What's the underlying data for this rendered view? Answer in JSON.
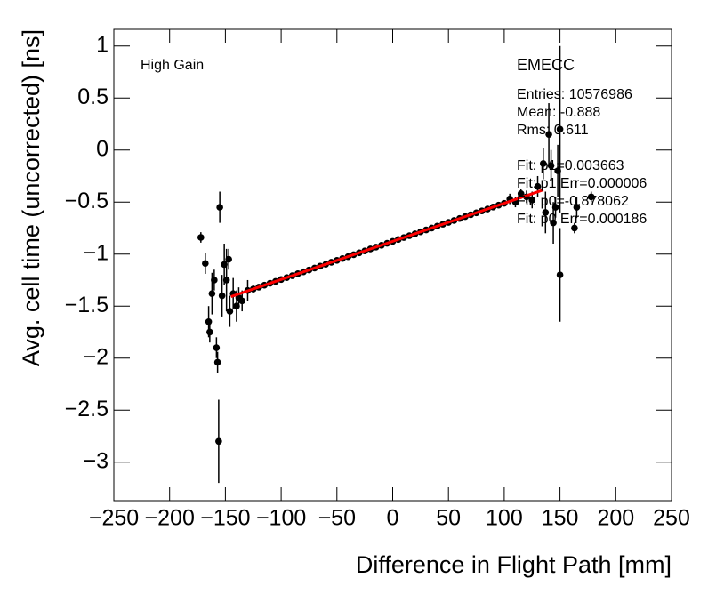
{
  "chart_data": {
    "type": "scatter",
    "xlabel": "Difference in Flight Path [mm]",
    "ylabel": "Avg. cell time (uncorrected) [ns]",
    "annotations": [
      "High Gain"
    ],
    "stats": [
      "EMECC",
      "Entries: 10576986",
      "Mean: -0.888",
      "Rms: 0.611",
      "Fit: p1=0.003663",
      "Fit: p1 Err=0.000006",
      "Fit: p0=-0.878062",
      "Fit: p0 Err=0.000186"
    ],
    "xlim": [
      -250,
      250
    ],
    "ylim": [
      -3.37,
      1.16
    ],
    "xticks": [
      {
        "value": -250,
        "label": "−250"
      },
      {
        "value": -200,
        "label": "−200"
      },
      {
        "value": -150,
        "label": "−150"
      },
      {
        "value": -100,
        "label": "−100"
      },
      {
        "value": -50,
        "label": "−50"
      },
      0,
      50,
      100,
      150,
      200,
      250
    ],
    "yticks": [
      1,
      0.5,
      0,
      {
        "value": -0.5,
        "label": "−0.5"
      },
      {
        "value": -1,
        "label": "−1"
      },
      {
        "value": -1.5,
        "label": "−1.5"
      },
      {
        "value": -2,
        "label": "−2"
      },
      {
        "value": -2.5,
        "label": "−2.5"
      },
      {
        "value": -3,
        "label": "−3"
      }
    ],
    "series": [
      {
        "color": "#000000",
        "x": [
          -172,
          -168,
          -165,
          -164,
          -162,
          -160,
          -158,
          -157,
          -156,
          -155,
          -153,
          -151,
          -149,
          -147,
          -146,
          -143,
          -140,
          -138,
          -135,
          -130,
          -125,
          -120,
          -115,
          -110,
          -105,
          -100,
          -95,
          -90,
          -85,
          -80,
          -75,
          -70,
          -65,
          -60,
          -55,
          -50,
          -45,
          -40,
          -35,
          -30,
          -25,
          -20,
          -15,
          -10,
          -5,
          0,
          5,
          10,
          15,
          20,
          25,
          30,
          35,
          40,
          45,
          50,
          55,
          60,
          65,
          70,
          75,
          80,
          85,
          90,
          95,
          100,
          105,
          110,
          115,
          120,
          125,
          130,
          135,
          137,
          140,
          142,
          144,
          146,
          148,
          150,
          150,
          163,
          165,
          178
        ],
        "values": [
          -0.84,
          -1.09,
          -1.65,
          -1.75,
          -1.38,
          -1.25,
          -1.9,
          -2.04,
          -2.8,
          -0.55,
          -1.4,
          -1.1,
          -1.25,
          -1.05,
          -1.55,
          -1.38,
          -1.5,
          -1.42,
          -1.45,
          -1.35,
          -1.336,
          -1.318,
          -1.299,
          -1.281,
          -1.263,
          -1.244,
          -1.226,
          -1.208,
          -1.189,
          -1.171,
          -1.153,
          -1.134,
          -1.116,
          -1.098,
          -1.079,
          -1.061,
          -1.043,
          -1.025,
          -1.006,
          -0.988,
          -0.97,
          -0.951,
          -0.933,
          -0.915,
          -0.896,
          -0.878,
          -0.86,
          -0.841,
          -0.823,
          -0.805,
          -0.786,
          -0.768,
          -0.75,
          -0.731,
          -0.713,
          -0.695,
          -0.677,
          -0.658,
          -0.64,
          -0.622,
          -0.603,
          -0.585,
          -0.567,
          -0.548,
          -0.53,
          -0.512,
          -0.47,
          -0.5,
          -0.42,
          -0.45,
          -0.48,
          -0.35,
          -0.13,
          -0.6,
          0.15,
          -0.15,
          -0.7,
          -0.55,
          -0.2,
          -1.2,
          0.2,
          -0.75,
          -0.55,
          -0.45
        ],
        "errors": [
          0.05,
          0.1,
          0.15,
          0.1,
          0.2,
          0.1,
          0.1,
          0.1,
          0.4,
          0.15,
          0.2,
          0.2,
          0.3,
          0.1,
          0.15,
          0.15,
          0.15,
          0.1,
          0.1,
          0.1,
          0.04,
          0.03,
          0.03,
          0.03,
          0.02,
          0.02,
          0.02,
          0.02,
          0.02,
          0.02,
          0.02,
          0.02,
          0.02,
          0.02,
          0.02,
          0.02,
          0.02,
          0.02,
          0.02,
          0.02,
          0.02,
          0.02,
          0.02,
          0.02,
          0.02,
          0.02,
          0.02,
          0.02,
          0.02,
          0.02,
          0.02,
          0.02,
          0.02,
          0.02,
          0.02,
          0.02,
          0.02,
          0.02,
          0.02,
          0.02,
          0.02,
          0.02,
          0.02,
          0.02,
          0.02,
          0.03,
          0.05,
          0.05,
          0.05,
          0.06,
          0.08,
          0.1,
          0.15,
          0.2,
          0.3,
          0.15,
          0.2,
          0.1,
          0.25,
          0.45,
          0.8,
          0.05,
          0.1,
          0.05
        ]
      }
    ],
    "fit": {
      "color": "#ff0000",
      "x": [
        -145,
        135
      ],
      "values": [
        -1.409,
        -0.383
      ]
    }
  }
}
